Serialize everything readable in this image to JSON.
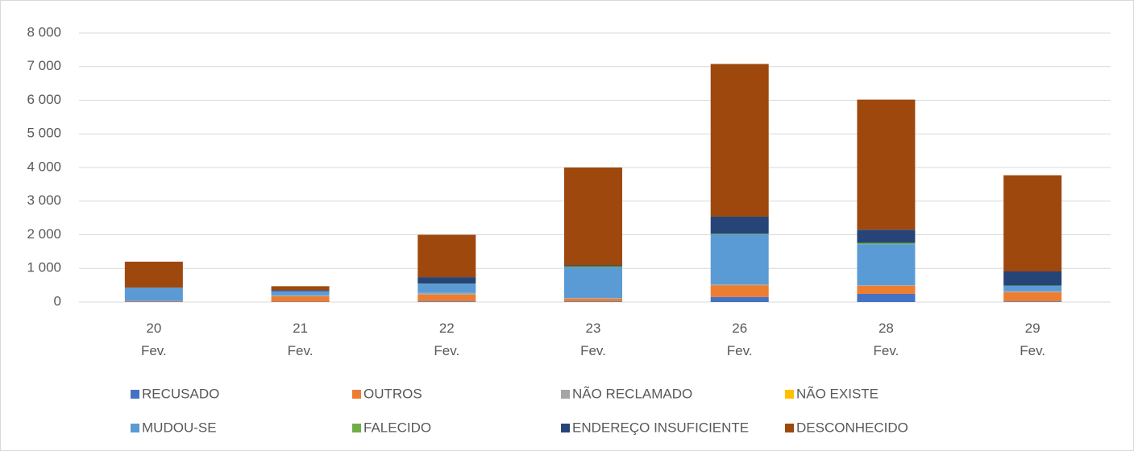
{
  "chart_data": {
    "type": "bar",
    "stacked": true,
    "categories": [
      "20 Fev.",
      "21 Fev.",
      "22 Fev.",
      "23 Fev.",
      "26 Fev.",
      "28 Fev.",
      "29 Fev."
    ],
    "series": [
      {
        "name": "RECUSADO",
        "color": "#4472c4",
        "values": [
          10,
          10,
          20,
          20,
          150,
          240,
          20
        ]
      },
      {
        "name": "OUTROS",
        "color": "#ed7d31",
        "values": [
          20,
          160,
          200,
          80,
          350,
          240,
          270
        ]
      },
      {
        "name": "NÃO RECLAMADO",
        "color": "#a5a5a5",
        "values": [
          0,
          30,
          50,
          20,
          20,
          20,
          30
        ]
      },
      {
        "name": "NÃO EXISTE",
        "color": "#ffc000",
        "values": [
          0,
          0,
          0,
          0,
          0,
          0,
          0
        ]
      },
      {
        "name": "MUDOU-SE",
        "color": "#5b9bd5",
        "values": [
          400,
          120,
          270,
          910,
          1490,
          1220,
          160
        ]
      },
      {
        "name": "FALECIDO",
        "color": "#70ad47",
        "values": [
          0,
          0,
          10,
          30,
          20,
          40,
          10
        ]
      },
      {
        "name": "ENDEREÇO INSUFICIENTE",
        "color": "#264478",
        "values": [
          0,
          30,
          190,
          30,
          510,
          390,
          420
        ]
      },
      {
        "name": "DESCONHECIDO",
        "color": "#9e480e",
        "values": [
          770,
          120,
          1260,
          2910,
          4540,
          3870,
          2860
        ]
      }
    ],
    "ylim": [
      0,
      8000
    ],
    "yticks": [
      0,
      {
        "value": 1000,
        "label": "1 000"
      },
      {
        "value": 2000,
        "label": "2 000"
      },
      {
        "value": 3000,
        "label": "3 000"
      },
      {
        "value": 4000,
        "label": "4 000"
      },
      {
        "value": 5000,
        "label": "5 000"
      },
      {
        "value": 6000,
        "label": "6 000"
      },
      {
        "value": 7000,
        "label": "7 000"
      },
      {
        "value": 8000,
        "label": "8 000"
      }
    ],
    "grid": true,
    "legend": "bottom"
  }
}
